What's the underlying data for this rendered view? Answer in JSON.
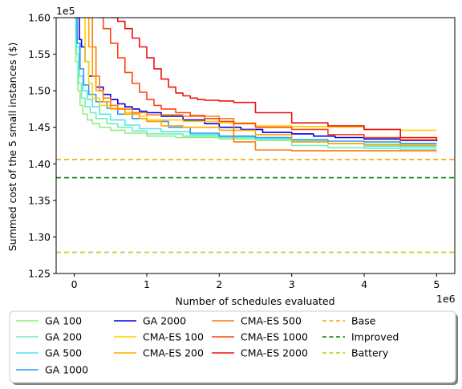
{
  "chart_data": {
    "type": "line",
    "title": "",
    "xlabel": "Number of schedules evaluated",
    "ylabel": "Summed cost of the 5 small instances ($)",
    "x_offset_label": "1e6",
    "y_offset_label": "1e5",
    "xlim": [
      -0.25,
      5.25
    ],
    "ylim": [
      1.25,
      1.6
    ],
    "x_ticks": [
      0,
      1,
      2,
      3,
      4,
      5
    ],
    "x_tick_labels": [
      "0",
      "1",
      "2",
      "3",
      "4",
      "5"
    ],
    "y_ticks": [
      1.25,
      1.3,
      1.35,
      1.4,
      1.45,
      1.5,
      1.55,
      1.6
    ],
    "y_tick_labels": [
      "1.25",
      "1.30",
      "1.35",
      "1.40",
      "1.45",
      "1.50",
      "1.55",
      "1.60"
    ],
    "grid": false,
    "legend_position": "below plot",
    "series": [
      {
        "name": "GA 100",
        "color": "#90ee80",
        "style": "solid",
        "x": [
          0.0,
          0.02,
          0.05,
          0.08,
          0.12,
          0.18,
          0.25,
          0.35,
          0.5,
          0.7,
          1.0,
          1.4,
          2.0,
          2.5,
          3.0,
          3.5,
          4.0,
          4.5,
          5.0
        ],
        "y": [
          1.6,
          1.54,
          1.5,
          1.48,
          1.468,
          1.46,
          1.455,
          1.45,
          1.446,
          1.442,
          1.438,
          1.436,
          1.434,
          1.432,
          1.43,
          1.428,
          1.427,
          1.426,
          1.426
        ]
      },
      {
        "name": "GA 200",
        "color": "#6ef0b4",
        "style": "solid",
        "x": [
          0.0,
          0.03,
          0.06,
          0.1,
          0.15,
          0.22,
          0.3,
          0.45,
          0.6,
          0.8,
          1.0,
          1.5,
          2.0,
          2.5,
          3.0,
          3.5,
          4.0,
          4.5,
          5.0
        ],
        "y": [
          1.6,
          1.55,
          1.51,
          1.49,
          1.478,
          1.47,
          1.462,
          1.455,
          1.45,
          1.445,
          1.441,
          1.438,
          1.436,
          1.434,
          1.425,
          1.422,
          1.421,
          1.42,
          1.42
        ]
      },
      {
        "name": "GA 500",
        "color": "#50e6f0",
        "style": "solid",
        "x": [
          0.0,
          0.03,
          0.07,
          0.12,
          0.18,
          0.25,
          0.35,
          0.5,
          0.7,
          0.9,
          1.2,
          1.6,
          2.0,
          2.5,
          3.0,
          3.5,
          4.0,
          4.5,
          5.0
        ],
        "y": [
          1.6,
          1.56,
          1.52,
          1.5,
          1.488,
          1.478,
          1.468,
          1.46,
          1.453,
          1.448,
          1.444,
          1.44,
          1.437,
          1.434,
          1.431,
          1.428,
          1.424,
          1.423,
          1.423
        ]
      },
      {
        "name": "GA 1000",
        "color": "#3399ee",
        "style": "solid",
        "x": [
          0.0,
          0.04,
          0.08,
          0.13,
          0.2,
          0.3,
          0.45,
          0.6,
          0.8,
          1.0,
          1.3,
          1.6,
          2.0,
          2.5,
          3.0,
          3.5,
          4.0,
          4.5,
          5.0
        ],
        "y": [
          1.6,
          1.565,
          1.53,
          1.508,
          1.495,
          1.485,
          1.476,
          1.468,
          1.462,
          1.458,
          1.45,
          1.442,
          1.438,
          1.436,
          1.433,
          1.431,
          1.43,
          1.428,
          1.428
        ]
      },
      {
        "name": "GA 2000",
        "color": "#0000dd",
        "style": "solid",
        "x": [
          0.05,
          0.07,
          0.1,
          0.15,
          0.2,
          0.3,
          0.4,
          0.5,
          0.6,
          0.7,
          0.8,
          0.9,
          1.0,
          1.2,
          1.5,
          1.8,
          2.0,
          2.3,
          2.6,
          3.0,
          3.3,
          3.6,
          4.0,
          4.5,
          5.0
        ],
        "y": [
          1.6,
          1.57,
          1.56,
          1.54,
          1.52,
          1.505,
          1.495,
          1.488,
          1.482,
          1.478,
          1.475,
          1.472,
          1.47,
          1.465,
          1.46,
          1.455,
          1.45,
          1.447,
          1.443,
          1.441,
          1.438,
          1.436,
          1.434,
          1.432,
          1.431
        ]
      },
      {
        "name": "CMA-ES 100",
        "color": "#ffd000",
        "style": "solid",
        "x": [
          0.12,
          0.15,
          0.2,
          0.25,
          0.35,
          0.5,
          0.7,
          0.9,
          1.0,
          1.5,
          2.0,
          2.5,
          3.0,
          3.5,
          4.0,
          4.5,
          5.0
        ],
        "y": [
          1.6,
          1.54,
          1.51,
          1.49,
          1.48,
          1.476,
          1.47,
          1.465,
          1.46,
          1.458,
          1.456,
          1.452,
          1.451,
          1.45,
          1.447,
          1.446,
          1.446
        ]
      },
      {
        "name": "CMA-ES 200",
        "color": "#ffa500",
        "style": "solid",
        "x": [
          0.18,
          0.2,
          0.25,
          0.3,
          0.4,
          0.5,
          0.7,
          0.9,
          1.0,
          1.2,
          1.5,
          2.0,
          2.5,
          3.0,
          3.5,
          4.0,
          4.5,
          5.0
        ],
        "y": [
          1.6,
          1.56,
          1.52,
          1.5,
          1.485,
          1.475,
          1.468,
          1.462,
          1.458,
          1.452,
          1.45,
          1.446,
          1.44,
          1.43,
          1.428,
          1.426,
          1.425,
          1.425
        ]
      },
      {
        "name": "CMA-ES 500",
        "color": "#ff7a10",
        "style": "solid",
        "x": [
          0.22,
          0.25,
          0.3,
          0.35,
          0.4,
          0.5,
          0.6,
          0.8,
          1.0,
          1.5,
          2.0,
          2.2,
          2.5,
          3.0,
          3.5,
          4.0,
          4.5,
          5.0
        ],
        "y": [
          1.6,
          1.56,
          1.52,
          1.5,
          1.49,
          1.48,
          1.475,
          1.47,
          1.467,
          1.465,
          1.462,
          1.43,
          1.419,
          1.418,
          1.418,
          1.418,
          1.418,
          1.418
        ]
      },
      {
        "name": "CMA-ES 1000",
        "color": "#ff4410",
        "style": "solid",
        "x": [
          0.35,
          0.4,
          0.5,
          0.6,
          0.7,
          0.8,
          0.9,
          1.0,
          1.1,
          1.2,
          1.4,
          1.6,
          1.8,
          2.0,
          2.2,
          2.5,
          3.0,
          3.5,
          4.0,
          4.5,
          5.0
        ],
        "y": [
          1.6,
          1.585,
          1.565,
          1.545,
          1.525,
          1.51,
          1.498,
          1.488,
          1.48,
          1.475,
          1.47,
          1.466,
          1.462,
          1.458,
          1.455,
          1.45,
          1.447,
          1.44,
          1.436,
          1.433,
          1.432
        ]
      },
      {
        "name": "CMA-ES 2000",
        "color": "#ee1111",
        "style": "solid",
        "x": [
          0.5,
          0.6,
          0.7,
          0.8,
          0.9,
          1.0,
          1.1,
          1.2,
          1.3,
          1.4,
          1.5,
          1.6,
          1.7,
          1.8,
          2.0,
          2.2,
          2.5,
          3.0,
          3.5,
          4.0,
          4.5,
          5.0
        ],
        "y": [
          1.6,
          1.595,
          1.585,
          1.572,
          1.56,
          1.545,
          1.53,
          1.516,
          1.505,
          1.497,
          1.493,
          1.49,
          1.488,
          1.487,
          1.486,
          1.484,
          1.47,
          1.456,
          1.452,
          1.447,
          1.436,
          1.432
        ]
      },
      {
        "name": "Base",
        "color": "#ffa500",
        "style": "dashed",
        "hline": 1.406
      },
      {
        "name": "Improved",
        "color": "#008000",
        "style": "dashed",
        "hline": 1.381
      },
      {
        "name": "Battery",
        "color": "#c8c800",
        "style": "dashed",
        "hline": 1.279
      }
    ]
  }
}
